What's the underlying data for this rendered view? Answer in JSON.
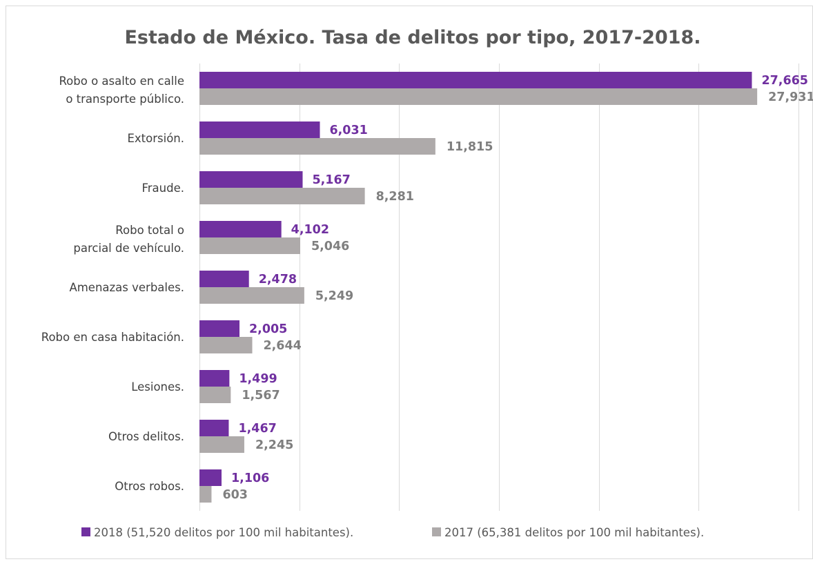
{
  "chart_data": {
    "type": "bar",
    "orientation": "horizontal",
    "title": "Estado de México. Tasa de delitos por tipo, 2017-2018.",
    "categories": [
      [
        "Robo o asalto en calle",
        "o transporte público."
      ],
      [
        "Extorsión."
      ],
      [
        "Fraude."
      ],
      [
        "Robo total o",
        "parcial de vehículo."
      ],
      [
        "Amenazas verbales."
      ],
      [
        "Robo en casa habitación."
      ],
      [
        "Lesiones."
      ],
      [
        "Otros delitos."
      ],
      [
        "Otros robos."
      ]
    ],
    "series": [
      {
        "name": "2018 (51,520 delitos por 100 mil habitantes).",
        "color": "#7030a0",
        "label_color": "#7030a0",
        "values": [
          27665,
          6031,
          5167,
          4102,
          2478,
          2005,
          1499,
          1467,
          1106
        ],
        "labels": [
          "27,665",
          "6,031",
          "5,167",
          "4,102",
          "2,478",
          "2,005",
          "1,499",
          "1,467",
          "1,106"
        ]
      },
      {
        "name": "2017 (65,381 delitos por 100 mil habitantes).",
        "color": "#aeaaaa",
        "label_color": "#7f7f7f",
        "values": [
          27931,
          11815,
          8281,
          5046,
          5249,
          2644,
          1567,
          2245,
          603
        ],
        "labels": [
          "27,931",
          "11,815",
          "8,281",
          "5,046",
          "5,249",
          "2,644",
          "1,567",
          "2,245",
          "603"
        ]
      }
    ],
    "xlim": [
      0,
      30000
    ],
    "x_gridline_step": 5000,
    "x_tick_labels_visible": false,
    "grid": true,
    "legend_position": "bottom"
  }
}
